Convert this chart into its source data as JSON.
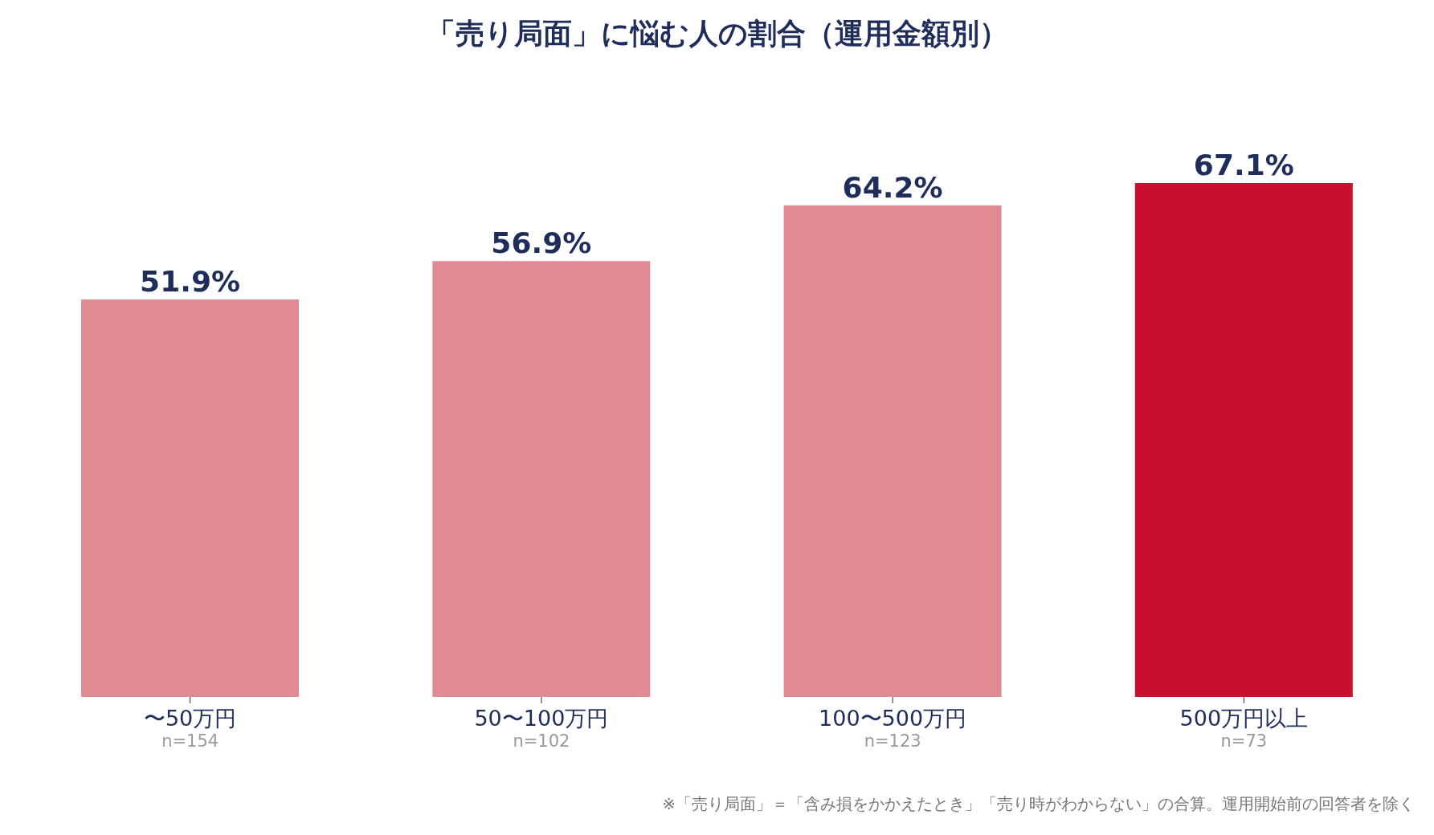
{
  "chart_data": {
    "type": "bar",
    "title": "「売り局面」に悩む人の割合（運用金額別）",
    "categories": [
      "〜50万円\nn=154",
      "50〜100万円\nn=102",
      "100〜500万円\nn=123",
      "500万円以上\nn=73"
    ],
    "values": [
      51.9,
      56.9,
      64.2,
      67.1
    ],
    "colors": [
      "#e08a94",
      "#e08a94",
      "#e08a94",
      "#c8102e"
    ],
    "value_labels": [
      "51.9%",
      "56.9%",
      "64.2%",
      "67.1%"
    ],
    "annotations": [
      "※「売り局面」＝「含み損をかかえたとき」「売り時がわからない」の合算。運用開始前の回答者を除く"
    ]
  }
}
